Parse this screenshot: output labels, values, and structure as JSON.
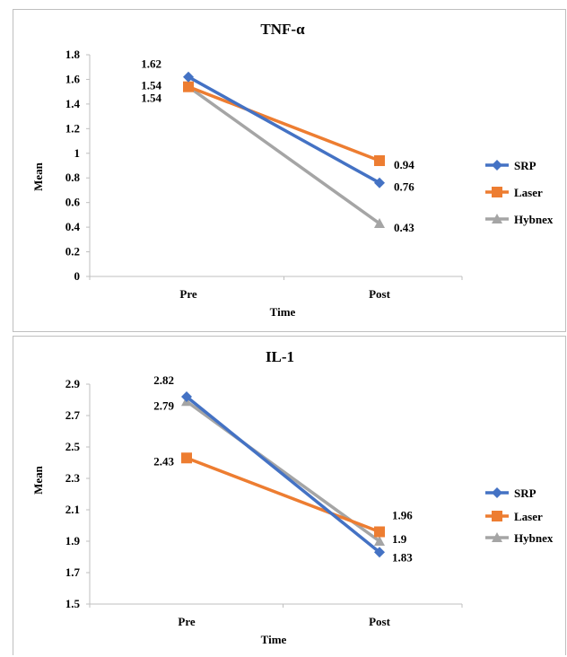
{
  "colors": {
    "SRP": "#4472c4",
    "Laser": "#ed7d31",
    "Hybnex": "#a5a5a5",
    "axis": "#bfbfbf"
  },
  "chart_data": [
    {
      "type": "line",
      "title": "TNF-α",
      "xlabel": "Time",
      "ylabel": "Mean",
      "categories": [
        "Pre",
        "Post"
      ],
      "ylim": [
        0,
        1.8
      ],
      "yticks": [
        "0",
        "0.2",
        "0.4",
        "0.6",
        "0.8",
        "1",
        "1.2",
        "1.4",
        "1.6",
        "1.8"
      ],
      "grid": false,
      "legend": "right",
      "series": [
        {
          "name": "SRP",
          "marker": "diamond",
          "values": [
            1.62,
            0.76
          ],
          "labels": [
            "1.62",
            "0.76"
          ]
        },
        {
          "name": "Laser",
          "marker": "square",
          "values": [
            1.54,
            0.94
          ],
          "labels": [
            "1.54",
            "0.94"
          ]
        },
        {
          "name": "Hybnex",
          "marker": "triangle",
          "values": [
            1.54,
            0.43
          ],
          "labels": [
            "1.54",
            "0.43"
          ]
        }
      ]
    },
    {
      "type": "line",
      "title": "IL-1",
      "xlabel": "Time",
      "ylabel": "Mean",
      "categories": [
        "Pre",
        "Post"
      ],
      "ylim": [
        1.5,
        2.9
      ],
      "yticks": [
        "1.5",
        "1.7",
        "1.9",
        "2.1",
        "2.3",
        "2.5",
        "2.7",
        "2.9"
      ],
      "grid": false,
      "legend": "right",
      "series": [
        {
          "name": "SRP",
          "marker": "diamond",
          "values": [
            2.82,
            1.83
          ],
          "labels": [
            "2.82",
            "1.83"
          ]
        },
        {
          "name": "Laser",
          "marker": "square",
          "values": [
            2.43,
            1.96
          ],
          "labels": [
            "2.43",
            "1.96"
          ]
        },
        {
          "name": "Hybnex",
          "marker": "triangle",
          "values": [
            2.79,
            1.9
          ],
          "labels": [
            "2.79",
            "1.9"
          ]
        }
      ]
    }
  ]
}
